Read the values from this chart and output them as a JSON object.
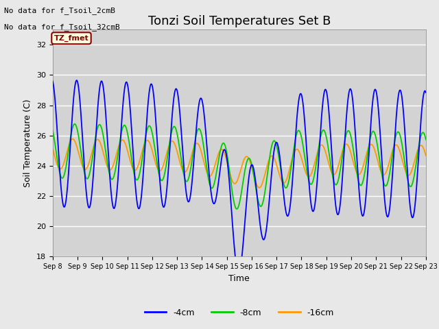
{
  "title": "Tonzi Soil Temperatures Set B",
  "xlabel": "Time",
  "ylabel": "Soil Temperature (C)",
  "ylim": [
    18,
    33
  ],
  "yticks": [
    18,
    20,
    22,
    24,
    26,
    28,
    30,
    32
  ],
  "xstart": 8,
  "xend": 23,
  "xtick_labels": [
    "Sep 8",
    "Sep 9",
    "Sep 10",
    "Sep 11",
    "Sep 12",
    "Sep 13",
    "Sep 14",
    "Sep 15",
    "Sep 16",
    "Sep 17",
    "Sep 18",
    "Sep 19",
    "Sep 20",
    "Sep 21",
    "Sep 22",
    "Sep 23"
  ],
  "note1": "No data for f_Tsoil_2cmB",
  "note2": "No data for f_Tsoil_32cmB",
  "annotation": "TZ_fmet",
  "color_4cm": "#0000ff",
  "color_8cm": "#00cc00",
  "color_16cm": "#ff9900",
  "legend_labels": [
    "-4cm",
    "-8cm",
    "-16cm"
  ],
  "background_color": "#e8e8e8",
  "plot_bg_color": "#d3d3d3",
  "title_fontsize": 13
}
